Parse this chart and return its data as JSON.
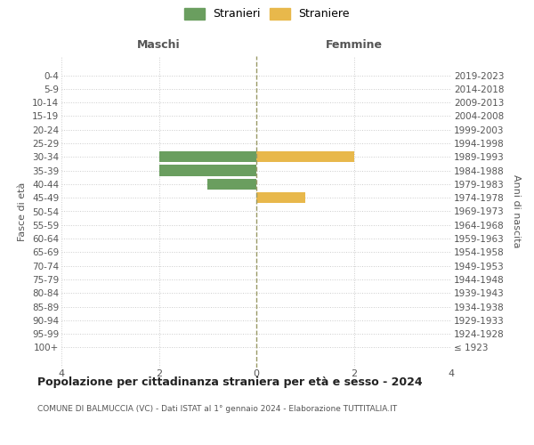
{
  "age_groups": [
    "100+",
    "95-99",
    "90-94",
    "85-89",
    "80-84",
    "75-79",
    "70-74",
    "65-69",
    "60-64",
    "55-59",
    "50-54",
    "45-49",
    "40-44",
    "35-39",
    "30-34",
    "25-29",
    "20-24",
    "15-19",
    "10-14",
    "5-9",
    "0-4"
  ],
  "birth_years": [
    "≤ 1923",
    "1924-1928",
    "1929-1933",
    "1934-1938",
    "1939-1943",
    "1944-1948",
    "1949-1953",
    "1954-1958",
    "1959-1963",
    "1964-1968",
    "1969-1973",
    "1974-1978",
    "1979-1983",
    "1984-1988",
    "1989-1993",
    "1994-1998",
    "1999-2003",
    "2004-2008",
    "2009-2013",
    "2014-2018",
    "2019-2023"
  ],
  "males": [
    0,
    0,
    0,
    0,
    0,
    0,
    0,
    0,
    0,
    0,
    0,
    0,
    1,
    2,
    2,
    0,
    0,
    0,
    0,
    0,
    0
  ],
  "females": [
    0,
    0,
    0,
    0,
    0,
    0,
    0,
    0,
    0,
    0,
    0,
    1,
    0,
    0,
    2,
    0,
    0,
    0,
    0,
    0,
    0
  ],
  "male_color": "#6a9e5f",
  "female_color": "#e8b84b",
  "male_label": "Stranieri",
  "female_label": "Straniere",
  "title": "Popolazione per cittadinanza straniera per età e sesso - 2024",
  "subtitle": "COMUNE DI BALMUCCIA (VC) - Dati ISTAT al 1° gennaio 2024 - Elaborazione TUTTITALIA.IT",
  "xlabel_left": "Maschi",
  "xlabel_right": "Femmine",
  "ylabel_left": "Fasce di età",
  "ylabel_right": "Anni di nascita",
  "xlim": 4,
  "grid_color": "#cccccc",
  "background_color": "#ffffff",
  "bar_height": 0.8
}
